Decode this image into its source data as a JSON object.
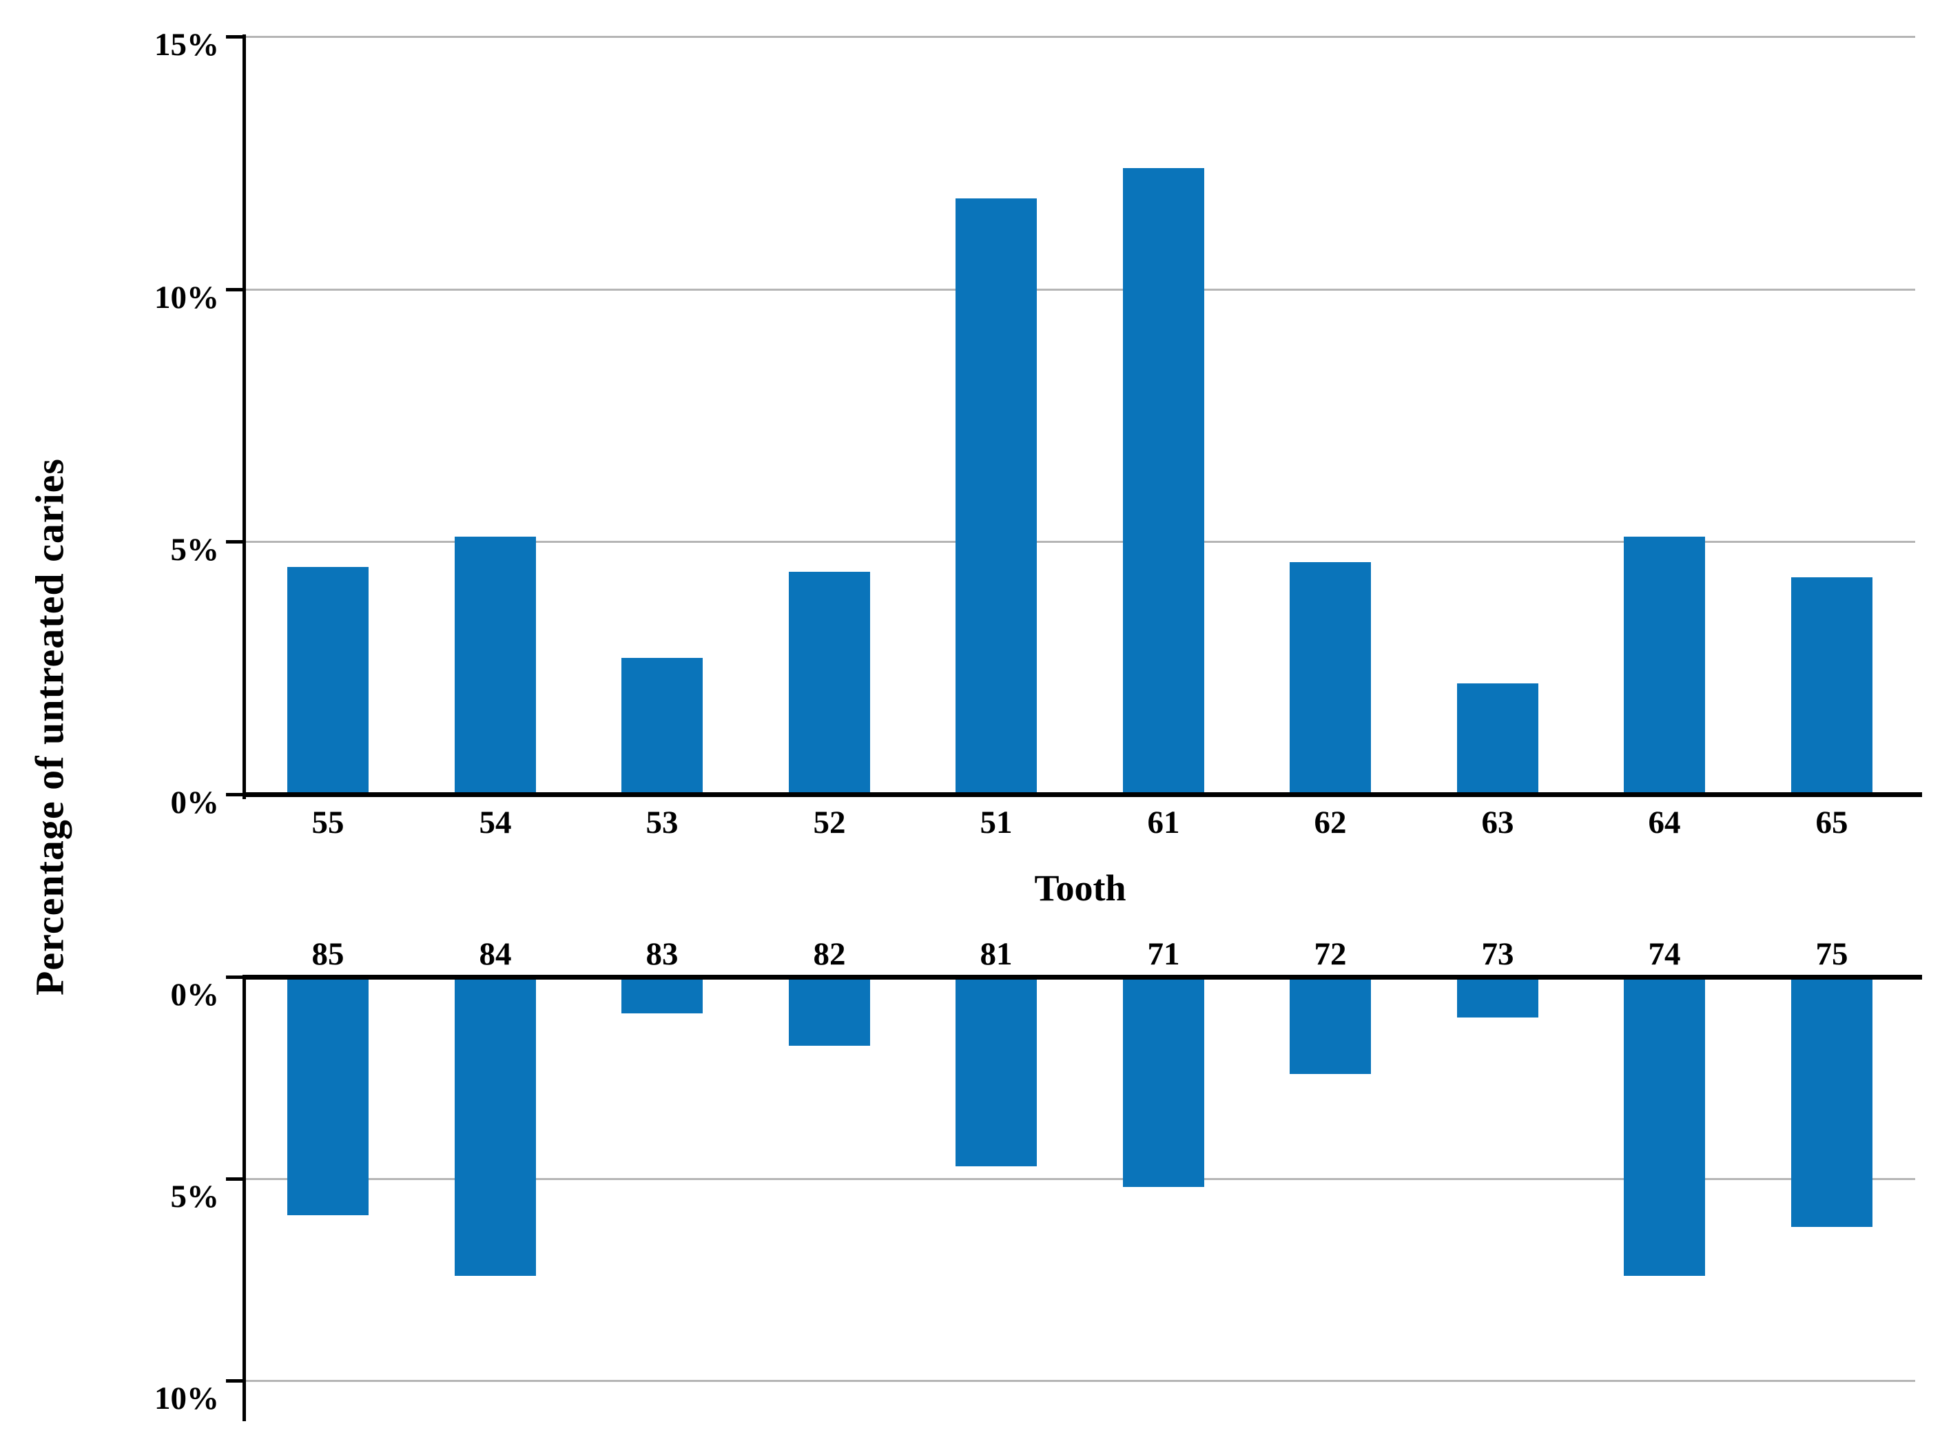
{
  "chart_data": {
    "type": "bar",
    "title": "",
    "xlabel": "Tooth",
    "ylabel": "Percentage of untreated caries",
    "bar_color": "#0a74ba",
    "gridline_color": "#b5b5b5",
    "axis_color": "#000000",
    "grid": true,
    "legend": false,
    "panels": [
      {
        "name": "primary-upper-teeth",
        "direction": "up",
        "categories": [
          "55",
          "54",
          "53",
          "52",
          "51",
          "61",
          "62",
          "63",
          "64",
          "65"
        ],
        "values": [
          4.5,
          5.1,
          2.7,
          4.4,
          11.8,
          12.4,
          4.6,
          2.2,
          5.1,
          4.3
        ],
        "unit": "%",
        "ylim": [
          0,
          15
        ],
        "yticks": [
          0,
          5,
          10,
          15
        ],
        "yticklabels": [
          "0%",
          "5%",
          "10%",
          "15%"
        ]
      },
      {
        "name": "primary-lower-teeth",
        "direction": "down",
        "categories": [
          "85",
          "84",
          "83",
          "82",
          "81",
          "71",
          "72",
          "73",
          "74",
          "75"
        ],
        "values": [
          5.9,
          7.4,
          0.9,
          1.7,
          4.7,
          5.2,
          2.4,
          1.0,
          7.4,
          6.2
        ],
        "unit": "%",
        "ylim": [
          0,
          10
        ],
        "yticks": [
          0,
          5,
          10
        ],
        "yticklabels": [
          "0%",
          "5%",
          "10%"
        ]
      }
    ]
  }
}
